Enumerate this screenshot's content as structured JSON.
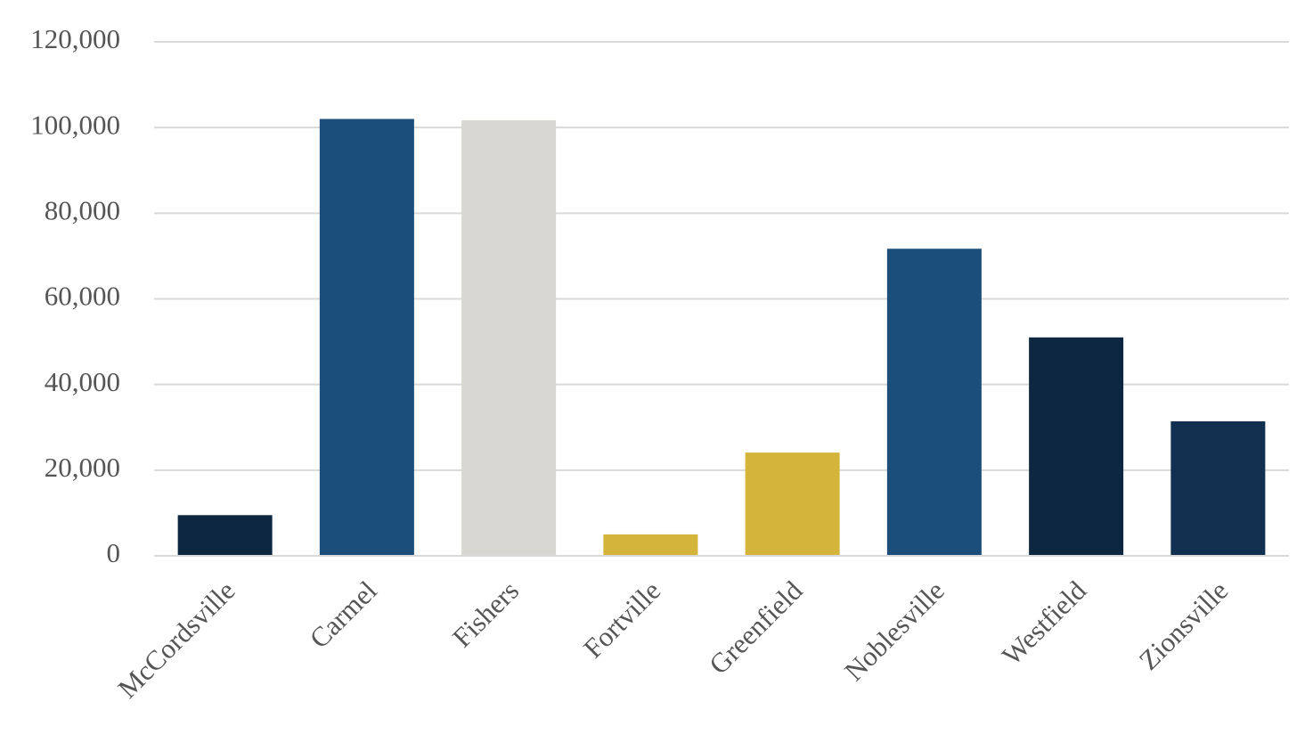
{
  "chart_data": {
    "type": "bar",
    "categories": [
      "McCordsville",
      "Carmel",
      "Fishers",
      "Fortville",
      "Greenfield",
      "Noblesville",
      "Westfield",
      "Zionsville"
    ],
    "values": [
      9500,
      102000,
      101700,
      5000,
      24100,
      71700,
      51000,
      31400
    ],
    "colors": [
      "#0d2740",
      "#1b4e7a",
      "#d9d7d2",
      "#d4b43a",
      "#d4b43a",
      "#1b4e7a",
      "#0d2740",
      "#11304f"
    ],
    "ylim": [
      0,
      120000
    ],
    "yticks": [
      0,
      {
        "value": 20000,
        "label": "20,000"
      },
      {
        "value": 40000,
        "label": "40,000"
      },
      {
        "value": 60000,
        "label": "60,000"
      },
      {
        "value": 80000,
        "label": "80,000"
      },
      {
        "value": 100000,
        "label": "100,000"
      },
      {
        "value": 120000,
        "label": "120,000"
      }
    ],
    "grid": true
  }
}
